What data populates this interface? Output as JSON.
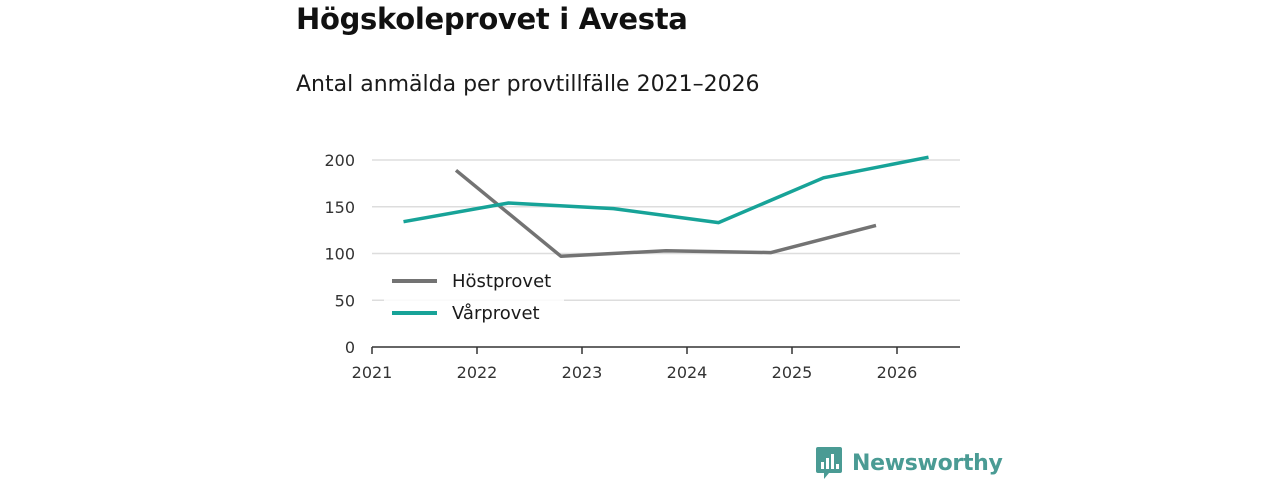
{
  "title": "Högskoleprovet i Avesta",
  "subtitle": "Antal anmälda per provtillfälle 2021–2026",
  "brand": "Newsworthy",
  "colors": {
    "hostprovet": "#737373",
    "varprovet": "#17a398",
    "grid": "#dddddd",
    "axis": "#333333",
    "brand": "#4a9b94"
  },
  "chart_data": {
    "type": "line",
    "title": "Antal anmälda per provtillfälle 2021–2026",
    "xlabel": "",
    "ylabel": "",
    "xlim": [
      2021,
      2026.6
    ],
    "ylim": [
      0,
      200
    ],
    "yticks": [
      0,
      50,
      100,
      150,
      200
    ],
    "xticks": [
      2021,
      2022,
      2023,
      2024,
      2025,
      2026
    ],
    "grid": true,
    "legend_position": "bottom-left",
    "series": [
      {
        "name": "Höstprovet",
        "color": "#737373",
        "x": [
          2021.8,
          2022.8,
          2023.8,
          2024.8,
          2025.8
        ],
        "values": [
          189,
          97,
          103,
          101,
          130
        ]
      },
      {
        "name": "Vårprovet",
        "color": "#17a398",
        "x": [
          2021.3,
          2022.3,
          2023.3,
          2024.3,
          2025.3,
          2026.3
        ],
        "values": [
          134,
          154,
          148,
          133,
          181,
          203
        ]
      }
    ]
  }
}
